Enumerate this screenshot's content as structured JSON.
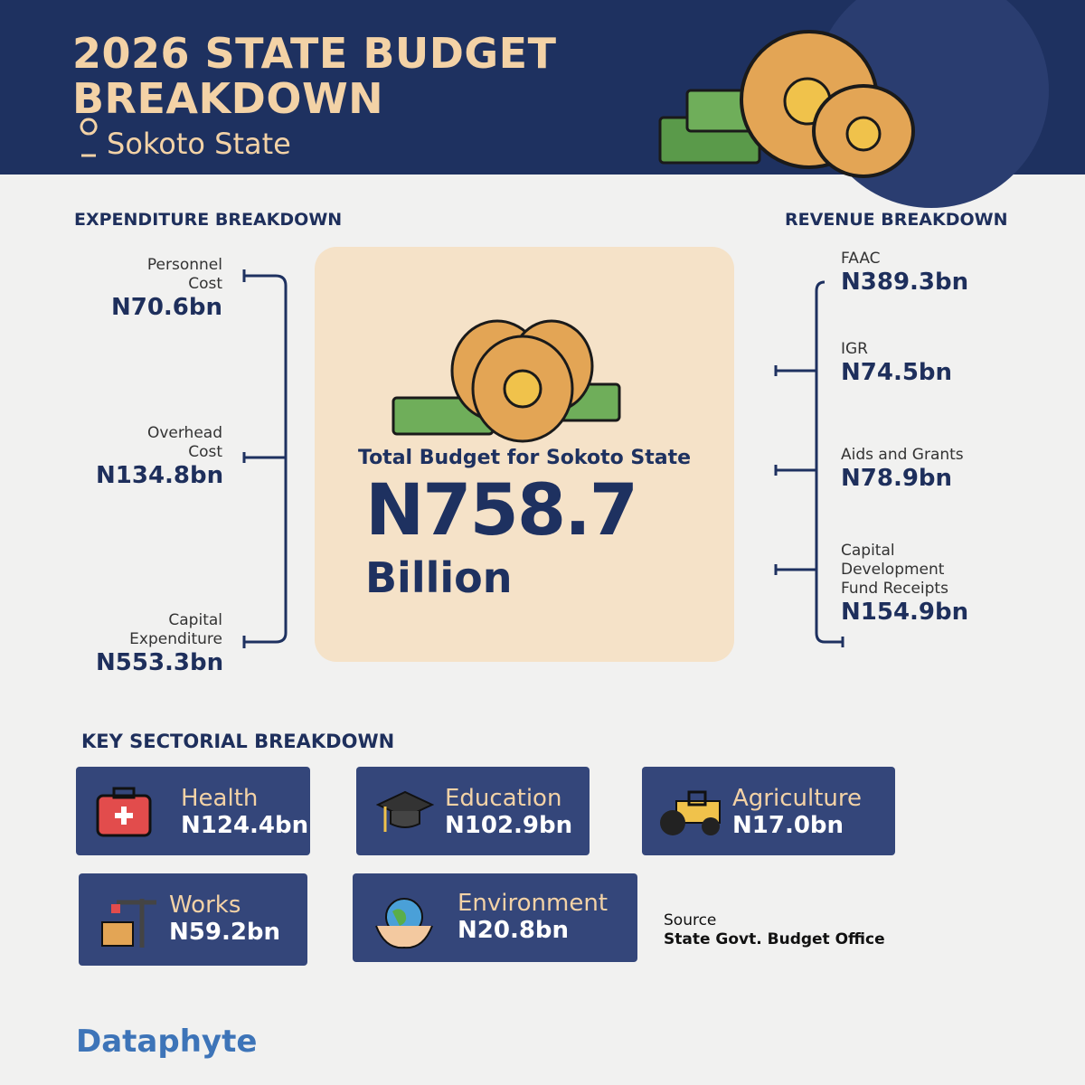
{
  "header": {
    "title_lines": [
      "2026 STATE BUDGET",
      "BREAKDOWN"
    ],
    "location": "Sokoto State"
  },
  "expenditure": {
    "heading": "EXPENDITURE BREAKDOWN",
    "items": [
      {
        "label": "Personnel Cost",
        "value": "N70.6bn"
      },
      {
        "label": "Overhead Cost",
        "value": "N134.8bn"
      },
      {
        "label": "Capital Expenditure",
        "value": "N553.3bn"
      }
    ]
  },
  "total": {
    "caption": "Total Budget for Sokoto State",
    "amount": "N758.7",
    "unit": "Billion"
  },
  "revenue": {
    "heading": "REVENUE BREAKDOWN",
    "items": [
      {
        "label": "FAAC",
        "value": "N389.3bn"
      },
      {
        "label": "IGR",
        "value": "N74.5bn"
      },
      {
        "label": "Aids and Grants",
        "value": "N78.9bn"
      },
      {
        "label": "Capital Development Fund Receipts",
        "value": "N154.9bn"
      }
    ]
  },
  "sectors": {
    "heading": "KEY SECTORIAL BREAKDOWN",
    "items": [
      {
        "label": "Health",
        "value": "N124.4bn"
      },
      {
        "label": "Education",
        "value": "N102.9bn"
      },
      {
        "label": "Agriculture",
        "value": "N17.0bn"
      },
      {
        "label": "Works",
        "value": "N59.2bn"
      },
      {
        "label": "Environment",
        "value": "N20.8bn"
      }
    ]
  },
  "source": {
    "label": "Source",
    "text": "State Govt. Budget Office"
  },
  "brand": "Dataphyte"
}
